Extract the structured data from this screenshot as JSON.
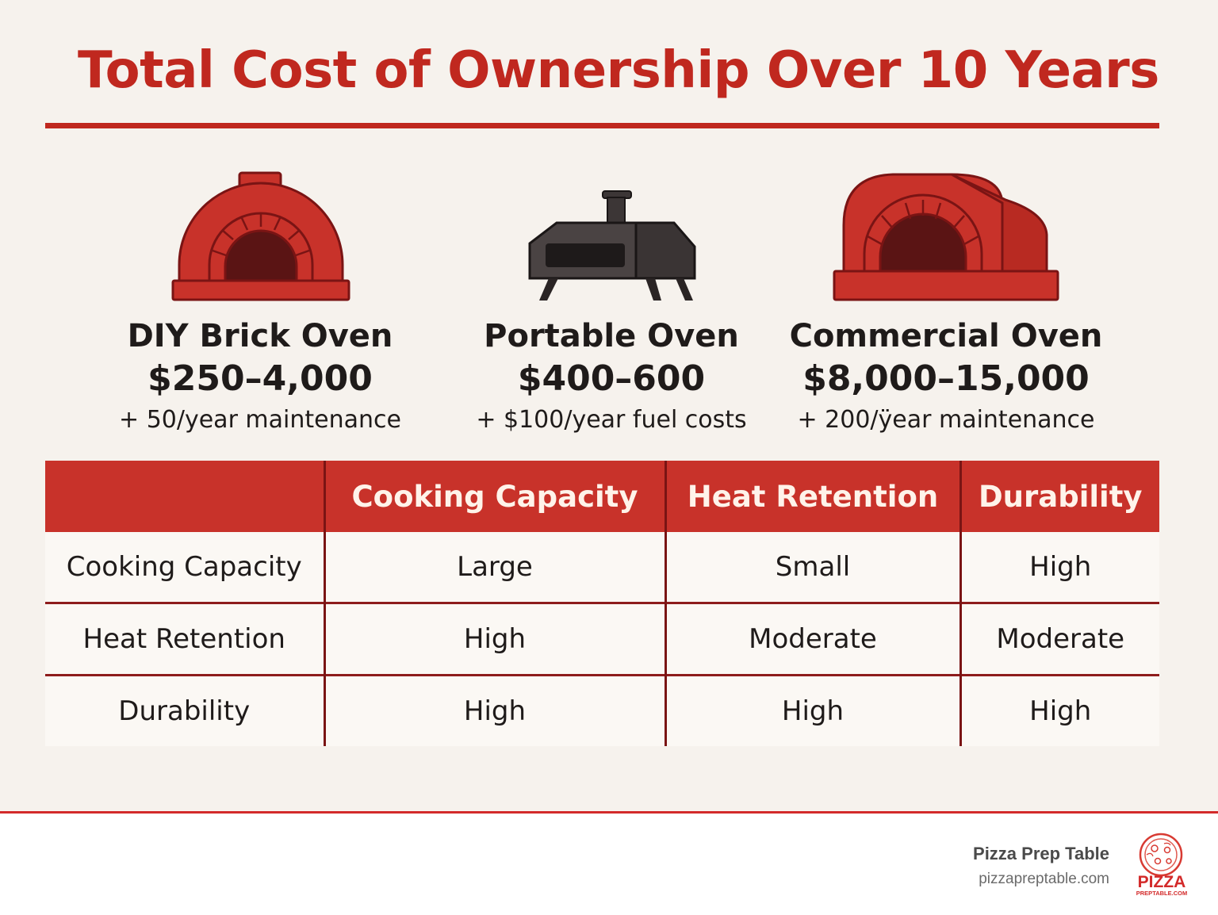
{
  "title": "Total Cost of Ownership Over 10 Years",
  "ovens": [
    {
      "name": "DIY Brick Oven",
      "price": "$250–4,000",
      "extra": "+ 50/year maintenance",
      "icon": "brick-dome-oven-icon"
    },
    {
      "name": "Portable Oven",
      "price": "$400–600",
      "extra": "+ $100/year fuel costs",
      "icon": "portable-oven-icon"
    },
    {
      "name": "Commercial Oven",
      "price": "$8,000–15,000",
      "extra": "+ 200/ÿear maintenance",
      "icon": "commercial-oven-icon"
    }
  ],
  "table": {
    "headers": [
      "",
      "Cooking Capacity",
      "Heat Retention",
      "Durability"
    ],
    "rows": [
      [
        "Cooking Capacity",
        "Large",
        "Small",
        "High"
      ],
      [
        "Heat Retention",
        "High",
        "Moderate",
        "Moderate"
      ],
      [
        "Durability",
        "High",
        "High",
        "High"
      ]
    ]
  },
  "footer": {
    "brand": "Pizza Prep Table",
    "url": "pizzapreptable.com",
    "logo_text": "PIZZA",
    "logo_subtext": "PREPTABLE.COM"
  },
  "colors": {
    "accent": "#c0281f",
    "header_bg": "#c8322a",
    "background": "#f6f2ed"
  }
}
